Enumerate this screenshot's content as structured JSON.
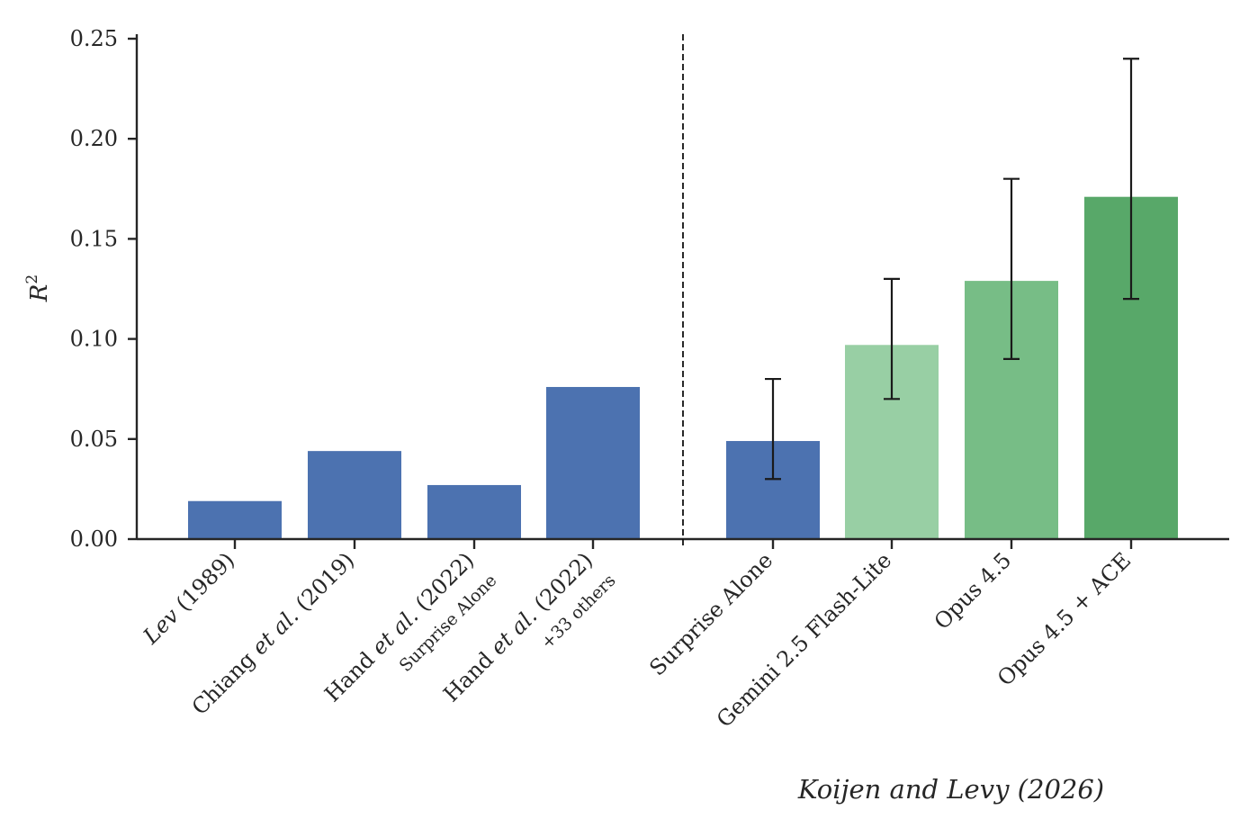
{
  "chart_data": {
    "type": "bar",
    "ylabel": "R",
    "ylabel_superscript": "2",
    "ylim": [
      0,
      0.25
    ],
    "yticks": [
      "0.00",
      "0.05",
      "0.10",
      "0.15",
      "0.20",
      "0.25"
    ],
    "grid": false,
    "divider": "dashed vertical line between literature and model bars",
    "bars": [
      {
        "label_parts": [
          {
            "t": "Lev",
            "i": true
          },
          {
            "t": " (1989)",
            "i": false
          }
        ],
        "sublabel": "",
        "value": 0.019,
        "color": "#4c72b0"
      },
      {
        "label_parts": [
          {
            "t": "Chiang ",
            "i": false
          },
          {
            "t": "et al.",
            "i": true
          },
          {
            "t": " (2019)",
            "i": false
          }
        ],
        "sublabel": "",
        "value": 0.044,
        "color": "#4c72b0"
      },
      {
        "label_parts": [
          {
            "t": "Hand ",
            "i": false
          },
          {
            "t": "et al.",
            "i": true
          },
          {
            "t": " (2022)",
            "i": false
          }
        ],
        "sublabel": "Surprise Alone",
        "value": 0.027,
        "color": "#4c72b0"
      },
      {
        "label_parts": [
          {
            "t": "Hand ",
            "i": false
          },
          {
            "t": "et al.",
            "i": true
          },
          {
            "t": " (2022)",
            "i": false
          }
        ],
        "sublabel": "+33 others",
        "value": 0.076,
        "color": "#4c72b0"
      },
      {
        "label_parts": [
          {
            "t": "Surprise Alone",
            "i": false
          }
        ],
        "sublabel": "",
        "value": 0.049,
        "color": "#4c72b0",
        "err": [
          0.03,
          0.08
        ]
      },
      {
        "label_parts": [
          {
            "t": "Gemini 2.5 Flash-Lite",
            "i": false
          }
        ],
        "sublabel": "",
        "value": 0.097,
        "color": "#98cfa4",
        "err": [
          0.07,
          0.13
        ]
      },
      {
        "label_parts": [
          {
            "t": "Opus 4.5",
            "i": false
          }
        ],
        "sublabel": "",
        "value": 0.129,
        "color": "#77bd86",
        "err": [
          0.09,
          0.18
        ]
      },
      {
        "label_parts": [
          {
            "t": "Opus 4.5 + ACE",
            "i": false
          }
        ],
        "sublabel": "",
        "value": 0.171,
        "color": "#58a869",
        "err": [
          0.12,
          0.24
        ]
      }
    ],
    "footer": "Koijen and Levy (2026)"
  }
}
